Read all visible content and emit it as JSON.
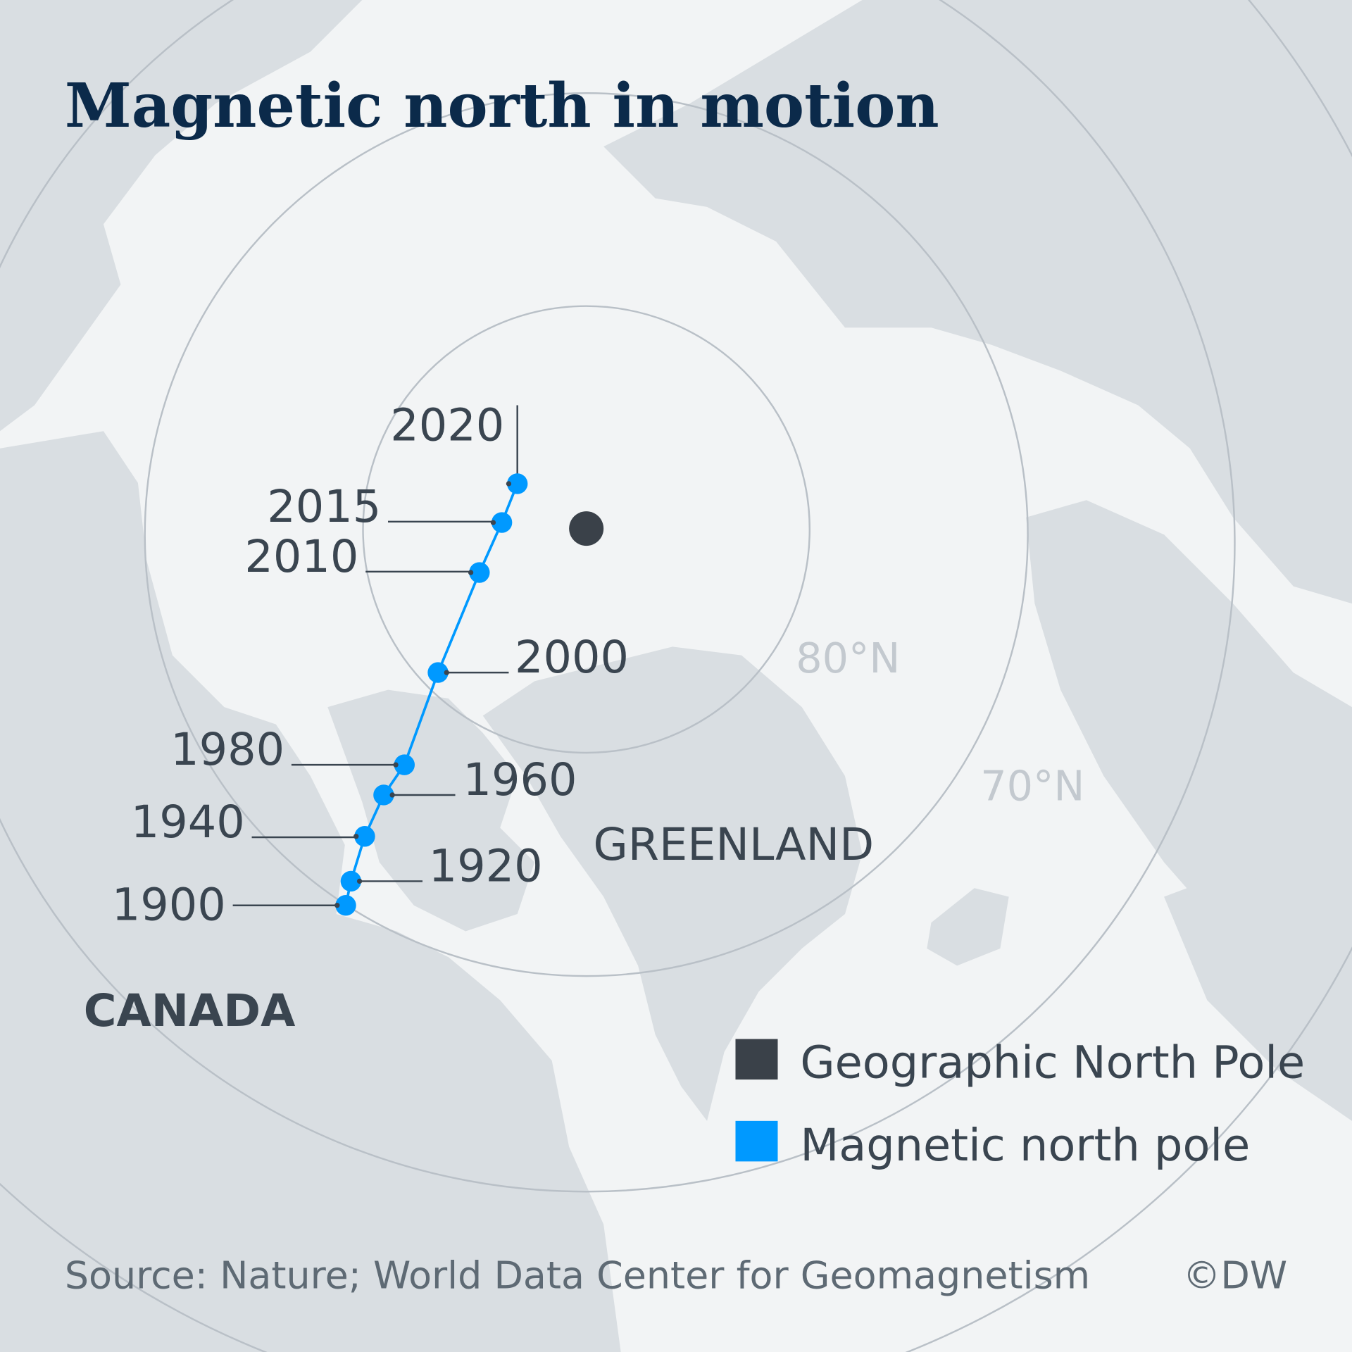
{
  "title": "Magnetic north in motion",
  "colors": {
    "background": "#f2f4f5",
    "land": "#d9dee2",
    "geographic_pole": "#3a4149",
    "magnetic_pole": "#0099ff",
    "title": "#0b2a4a"
  },
  "latitude_labels": {
    "lat80": "80°N",
    "lat70": "70°N"
  },
  "regions": {
    "greenland": "GREENLAND",
    "canada": "CANADA"
  },
  "magnetic_pole_track": [
    "1900",
    "1920",
    "1940",
    "1960",
    "1980",
    "2000",
    "2010",
    "2015",
    "2020"
  ],
  "legend": {
    "geographic": "Geographic North Pole",
    "magnetic": "Magnetic north pole"
  },
  "source": "Source: Nature; World Data Center for Geomagnetism",
  "credit": "©DW"
}
